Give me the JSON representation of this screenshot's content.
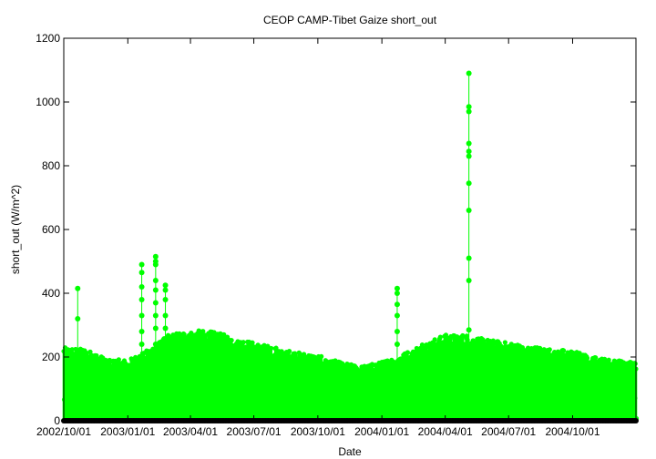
{
  "chart_data": {
    "type": "scatter",
    "title": "CEOP CAMP-Tibet Gaize  short_out",
    "xlabel": "Date",
    "ylabel": "short_out (W/m^2)",
    "ylim": [
      0,
      1200
    ],
    "xlim": [
      "2002-10-01",
      "2004-12-31"
    ],
    "yticks": [
      0,
      200,
      400,
      600,
      800,
      1000,
      1200
    ],
    "xticks": [
      {
        "date": "2002-10-01",
        "label": "2002/10/01"
      },
      {
        "date": "2003-01-01",
        "label": "2003/01/01"
      },
      {
        "date": "2003-04-01",
        "label": "2003/04/01"
      },
      {
        "date": "2003-07-01",
        "label": "2003/07/01"
      },
      {
        "date": "2003-10-01",
        "label": "2003/10/01"
      },
      {
        "date": "2004-01-01",
        "label": "2004/01/01"
      },
      {
        "date": "2004-04-01",
        "label": "2004/04/01"
      },
      {
        "date": "2004-07-01",
        "label": "2004/07/01"
      },
      {
        "date": "2004-10-01",
        "label": "2004/10/01"
      }
    ],
    "grid": false,
    "marker": "circle",
    "series_color": "#00ff00",
    "baseline_color": "#000000",
    "envelope": [
      {
        "date": "2002-10-01",
        "value": 230
      },
      {
        "date": "2002-11-01",
        "value": 225
      },
      {
        "date": "2002-12-01",
        "value": 195
      },
      {
        "date": "2003-01-01",
        "value": 190
      },
      {
        "date": "2003-02-01",
        "value": 225
      },
      {
        "date": "2003-03-01",
        "value": 270
      },
      {
        "date": "2003-04-01",
        "value": 285
      },
      {
        "date": "2003-05-01",
        "value": 280
      },
      {
        "date": "2003-06-01",
        "value": 265
      },
      {
        "date": "2003-07-01",
        "value": 245
      },
      {
        "date": "2003-08-01",
        "value": 230
      },
      {
        "date": "2003-09-01",
        "value": 215
      },
      {
        "date": "2003-10-01",
        "value": 205
      },
      {
        "date": "2003-11-01",
        "value": 185
      },
      {
        "date": "2003-12-01",
        "value": 170
      },
      {
        "date": "2004-01-01",
        "value": 185
      },
      {
        "date": "2004-02-01",
        "value": 210
      },
      {
        "date": "2004-03-01",
        "value": 245
      },
      {
        "date": "2004-04-01",
        "value": 270
      },
      {
        "date": "2004-05-01",
        "value": 270
      },
      {
        "date": "2004-06-01",
        "value": 255
      },
      {
        "date": "2004-07-01",
        "value": 245
      },
      {
        "date": "2004-08-01",
        "value": 235
      },
      {
        "date": "2004-09-01",
        "value": 225
      },
      {
        "date": "2004-10-01",
        "value": 220
      },
      {
        "date": "2004-11-01",
        "value": 200
      },
      {
        "date": "2004-12-01",
        "value": 190
      },
      {
        "date": "2004-12-31",
        "value": 185
      }
    ],
    "spikes": [
      {
        "date": "2002-10-21",
        "values": [
          320,
          415
        ]
      },
      {
        "date": "2003-01-21",
        "values": [
          240,
          280,
          330,
          380,
          420,
          465,
          490
        ]
      },
      {
        "date": "2003-02-10",
        "values": [
          240,
          290,
          330,
          370,
          410,
          440,
          490,
          500,
          515
        ]
      },
      {
        "date": "2003-02-24",
        "values": [
          240,
          290,
          330,
          380,
          410,
          425
        ]
      },
      {
        "date": "2004-01-23",
        "values": [
          240,
          280,
          330,
          365,
          400,
          415
        ]
      },
      {
        "date": "2004-05-05",
        "values": [
          285,
          440,
          510,
          660,
          745,
          830,
          845,
          870,
          970,
          985,
          1090
        ]
      }
    ]
  }
}
